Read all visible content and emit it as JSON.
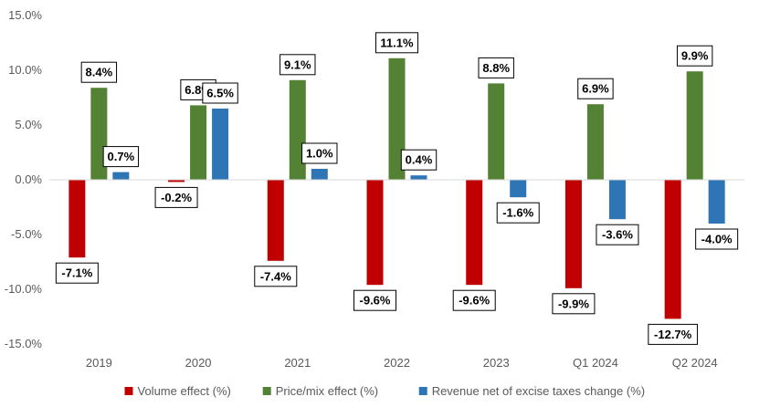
{
  "chart_data": {
    "type": "bar",
    "categories": [
      "2019",
      "2020",
      "2021",
      "2022",
      "2023",
      "Q1 2024",
      "Q2 2024"
    ],
    "series": [
      {
        "name": "Volume effect (%)",
        "color": "#C00000",
        "values": [
          -7.1,
          -0.2,
          -7.4,
          -9.6,
          -9.6,
          -9.9,
          -12.7
        ],
        "labels": [
          "-7.1%",
          "-0.2%",
          "-7.4%",
          "-9.6%",
          "-9.6%",
          "-9.9%",
          "-12.7%"
        ]
      },
      {
        "name": "Price/mix effect (%)",
        "color": "#548235",
        "values": [
          8.4,
          6.8,
          9.1,
          11.1,
          8.8,
          6.9,
          9.9
        ],
        "labels": [
          "8.4%",
          "6.8%",
          "9.1%",
          "11.1%",
          "8.8%",
          "6.9%",
          "9.9%"
        ]
      },
      {
        "name": "Revenue net of excise taxes change (%)",
        "color": "#2E75B6",
        "values": [
          0.7,
          6.5,
          1.0,
          0.4,
          -1.6,
          -3.6,
          -4.0
        ],
        "labels": [
          "0.7%",
          "6.5%",
          "1.0%",
          "0.4%",
          "-1.6%",
          "-3.6%",
          "-4.0%"
        ]
      }
    ],
    "ylim": [
      -15,
      15
    ],
    "yticks": [
      15,
      10,
      5,
      0,
      -5,
      -10,
      -15
    ],
    "ytick_labels": [
      "15.0%",
      "10.0%",
      "5.0%",
      "0.0%",
      "-5.0%",
      "-10.0%",
      "-15.0%"
    ],
    "grid": false,
    "legend_position": "bottom",
    "title": "",
    "xlabel": "",
    "ylabel": ""
  }
}
